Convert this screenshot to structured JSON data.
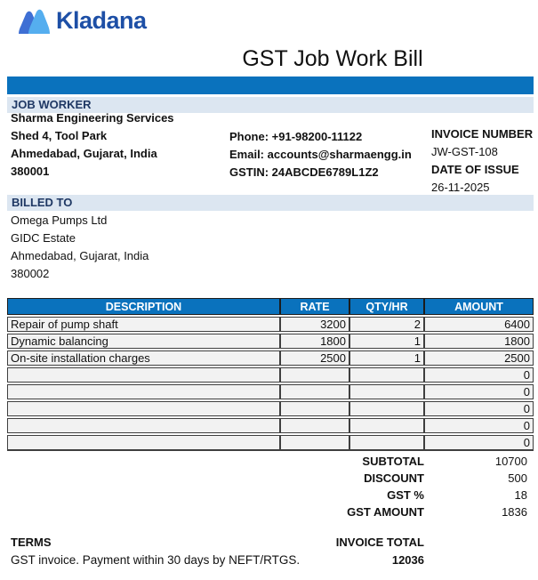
{
  "brand": {
    "name": "Kladana",
    "logo_icon": "kladana-mountains-icon",
    "wordmark_color": "#1d4fa6",
    "icon_color_left": "#3e6fd4",
    "icon_color_right": "#55aeef"
  },
  "title": "GST Job Work Bill",
  "accent_color": "#0a72bd",
  "band_color": "#dce6f1",
  "section_jobworker": {
    "heading": "JOB WORKER",
    "lines": [
      "Sharma Engineering Services",
      "Shed 4, Tool Park",
      "Ahmedabad, Gujarat, India",
      "380001"
    ]
  },
  "contact": {
    "lines": [
      "Phone: +91-98200-11122",
      "Email: accounts@sharmaengg.in",
      "GSTIN: 24ABCDE6789L1Z2"
    ]
  },
  "invoice_meta": {
    "number_label": "INVOICE NUMBER",
    "number_value": "JW-GST-108",
    "date_label": "DATE OF ISSUE",
    "date_value": "26-11-2025"
  },
  "section_billed": {
    "heading": "BILLED TO",
    "lines": [
      "Omega Pumps Ltd",
      "GIDC Estate",
      "Ahmedabad, Gujarat, India",
      "380002"
    ]
  },
  "table": {
    "headers": [
      "DESCRIPTION",
      "RATE",
      "QTY/HR",
      "AMOUNT"
    ],
    "rows": [
      {
        "description": "Repair of pump shaft",
        "rate": "3200",
        "qty": "2",
        "amount": "6400"
      },
      {
        "description": "Dynamic balancing",
        "rate": "1800",
        "qty": "1",
        "amount": "1800"
      },
      {
        "description": "On-site installation charges",
        "rate": "2500",
        "qty": "1",
        "amount": "2500"
      },
      {
        "description": "",
        "rate": "",
        "qty": "",
        "amount": "0"
      },
      {
        "description": "",
        "rate": "",
        "qty": "",
        "amount": "0"
      },
      {
        "description": "",
        "rate": "",
        "qty": "",
        "amount": "0"
      },
      {
        "description": "",
        "rate": "",
        "qty": "",
        "amount": "0"
      },
      {
        "description": "",
        "rate": "",
        "qty": "",
        "amount": "0"
      }
    ]
  },
  "totals": {
    "rows": [
      {
        "label": "SUBTOTAL",
        "value": "10700"
      },
      {
        "label": "DISCOUNT",
        "value": "500"
      },
      {
        "label": "GST %",
        "value": "18"
      },
      {
        "label": "GST AMOUNT",
        "value": "1836"
      }
    ]
  },
  "footer": {
    "terms_heading": "TERMS",
    "terms_text": "GST invoice. Payment within 30 days by NEFT/RTGS.",
    "invoice_total_label": "INVOICE TOTAL",
    "invoice_total_value": "12036"
  }
}
